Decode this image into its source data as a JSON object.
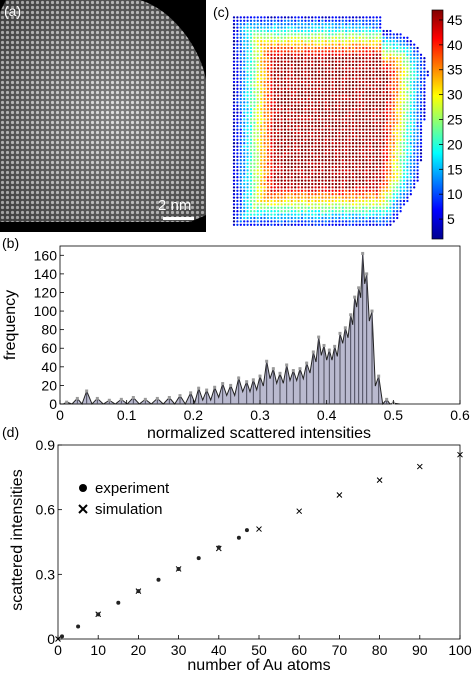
{
  "panels": {
    "a": {
      "label": "(a)",
      "scalebar_label": "2 nm"
    },
    "b": {
      "label": "(b)"
    },
    "c": {
      "label": "(c)"
    },
    "d": {
      "label": "(d)"
    }
  },
  "chart_data": [
    {
      "panel": "c",
      "type": "heatmap",
      "colorbar": {
        "ticks": [
          5,
          10,
          15,
          20,
          25,
          30,
          35,
          40,
          45
        ],
        "range": [
          1,
          47
        ],
        "colormap": "jet"
      }
    },
    {
      "panel": "b",
      "type": "area",
      "xlabel": "normalized scattered intensities",
      "ylabel": "frequency",
      "xlim": [
        0,
        0.6
      ],
      "ylim": [
        0,
        170
      ],
      "xticks": [
        "0",
        "0.1",
        "0.2",
        "0.3",
        "0.4",
        "0.5",
        "0.6"
      ],
      "yticks": [
        "0",
        "20",
        "40",
        "60",
        "80",
        "100",
        "120",
        "140",
        "160"
      ],
      "xtick_values": [
        0,
        0.1,
        0.2,
        0.3,
        0.4,
        0.5,
        0.6
      ],
      "ytick_values": [
        0,
        20,
        40,
        60,
        80,
        100,
        120,
        140,
        160
      ],
      "x": [
        0.01,
        0.026,
        0.04,
        0.056,
        0.074,
        0.092,
        0.11,
        0.128,
        0.146,
        0.164,
        0.18,
        0.196,
        0.208,
        0.22,
        0.232,
        0.244,
        0.256,
        0.268,
        0.28,
        0.29,
        0.3,
        0.31,
        0.32,
        0.33,
        0.34,
        0.35,
        0.36,
        0.37,
        0.38,
        0.388,
        0.396,
        0.404,
        0.412,
        0.42,
        0.428,
        0.436,
        0.442,
        0.448,
        0.454,
        0.46,
        0.468,
        0.478,
        0.49,
        0.5
      ],
      "values": [
        2,
        6,
        14,
        6,
        4,
        5,
        7,
        5,
        6,
        7,
        9,
        12,
        17,
        15,
        18,
        22,
        20,
        28,
        24,
        26,
        30,
        46,
        38,
        33,
        42,
        36,
        38,
        44,
        56,
        72,
        63,
        58,
        62,
        76,
        82,
        96,
        115,
        125,
        162,
        140,
        100,
        30,
        5,
        1
      ]
    },
    {
      "panel": "d",
      "type": "scatter",
      "xlabel": "number of Au atoms",
      "ylabel": "scattered intensities",
      "xlim": [
        0,
        100
      ],
      "ylim": [
        0,
        0.9
      ],
      "xticks": [
        "0",
        "10",
        "20",
        "30",
        "40",
        "50",
        "60",
        "70",
        "80",
        "90",
        "100"
      ],
      "yticks": [
        "0",
        "0.3",
        "0.6",
        "0.9"
      ],
      "xtick_values": [
        0,
        10,
        20,
        30,
        40,
        50,
        60,
        70,
        80,
        90,
        100
      ],
      "ytick_values": [
        0,
        0.3,
        0.6,
        0.9
      ],
      "series": [
        {
          "name": "experiment",
          "marker": "dot",
          "x": [
            1,
            5,
            10,
            15,
            20,
            25,
            30,
            35,
            40,
            45,
            47
          ],
          "y": [
            0.012,
            0.058,
            0.114,
            0.168,
            0.222,
            0.275,
            0.325,
            0.375,
            0.425,
            0.47,
            0.505
          ]
        },
        {
          "name": "simulation",
          "marker": "x",
          "x": [
            0,
            10,
            20,
            30,
            40,
            50,
            60,
            70,
            80,
            90,
            100
          ],
          "y": [
            0,
            0.115,
            0.222,
            0.325,
            0.42,
            0.51,
            0.593,
            0.668,
            0.737,
            0.8,
            0.855
          ]
        }
      ]
    }
  ]
}
